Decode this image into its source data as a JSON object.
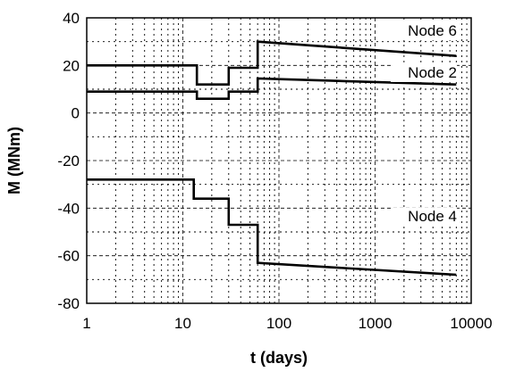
{
  "chart_data": {
    "type": "line",
    "title": "",
    "xlabel": "t (days)",
    "ylabel": "M (MNm)",
    "xscale": "log",
    "xlim": [
      1,
      10000
    ],
    "ylim": [
      -80,
      40
    ],
    "xticks": [
      1,
      10,
      100,
      1000,
      10000
    ],
    "xtick_labels": [
      "1",
      "10",
      "100",
      "1000",
      "10000"
    ],
    "yticks": [
      40,
      20,
      0,
      -20,
      -40,
      -60,
      -80
    ],
    "ytick_labels": [
      "40",
      "20",
      "0",
      "-20",
      "-40",
      "-60",
      "-80"
    ],
    "grid": true,
    "series": [
      {
        "name": "Node 6",
        "x": [
          1,
          14,
          14,
          30,
          30,
          60,
          60,
          7000
        ],
        "y": [
          20,
          20,
          12,
          12,
          19,
          19,
          30,
          24
        ]
      },
      {
        "name": "Node 2",
        "x": [
          1,
          14,
          14,
          30,
          30,
          60,
          60,
          7000
        ],
        "y": [
          9,
          9,
          6,
          6,
          9,
          9,
          14.5,
          12
        ]
      },
      {
        "name": "Node 4",
        "x": [
          1,
          13,
          13,
          30,
          30,
          60,
          60,
          7000
        ],
        "y": [
          -28,
          -28,
          -36,
          -36,
          -47,
          -47,
          -63,
          -68
        ]
      }
    ]
  }
}
